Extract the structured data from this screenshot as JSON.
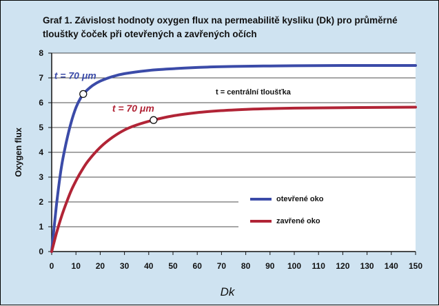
{
  "chart_data": {
    "type": "line",
    "title_line1": "Graf 1. Závislost hodnoty oxygen flux na permeabilitě kysliku (Dk) pro průměrné",
    "title_line2": "tlouštky čoček při otevřených a zavřených očích",
    "xlabel": "Dk",
    "ylabel": "Oxygen flux",
    "xlim": [
      0,
      150
    ],
    "ylim": [
      0,
      8
    ],
    "x_ticks": [
      0,
      10,
      20,
      30,
      40,
      50,
      60,
      70,
      80,
      90,
      100,
      110,
      120,
      130,
      140,
      150
    ],
    "y_ticks": [
      0,
      1,
      2,
      3,
      4,
      5,
      6,
      7,
      8
    ],
    "grid": "horizontal",
    "note": "t = centrální tloušťka",
    "series": [
      {
        "name": "otevřené oko",
        "color": "#3b4ba8",
        "x": [
          0,
          2,
          4,
          6,
          8,
          10,
          12,
          14,
          17,
          20,
          25,
          30,
          40,
          50,
          60,
          70,
          80,
          90,
          100,
          120,
          150
        ],
        "y": [
          0,
          1.9,
          3.4,
          4.4,
          5.2,
          5.8,
          6.2,
          6.45,
          6.7,
          6.87,
          7.05,
          7.17,
          7.3,
          7.37,
          7.42,
          7.45,
          7.47,
          7.48,
          7.49,
          7.5,
          7.5
        ],
        "annotation": {
          "label": "t = 70 μm",
          "x": 13,
          "y": 6.35
        }
      },
      {
        "name": "zavřené oko",
        "color": "#b12436",
        "x": [
          0,
          2,
          4,
          6,
          8,
          10,
          12,
          15,
          20,
          25,
          30,
          35,
          42,
          50,
          60,
          70,
          80,
          90,
          100,
          120,
          150
        ],
        "y": [
          0,
          0.75,
          1.4,
          1.95,
          2.45,
          2.85,
          3.2,
          3.65,
          4.2,
          4.6,
          4.9,
          5.1,
          5.3,
          5.47,
          5.6,
          5.68,
          5.73,
          5.76,
          5.78,
          5.8,
          5.82
        ],
        "annotation": {
          "label": "t = 70 μm",
          "x": 42,
          "y": 5.3
        }
      }
    ]
  }
}
